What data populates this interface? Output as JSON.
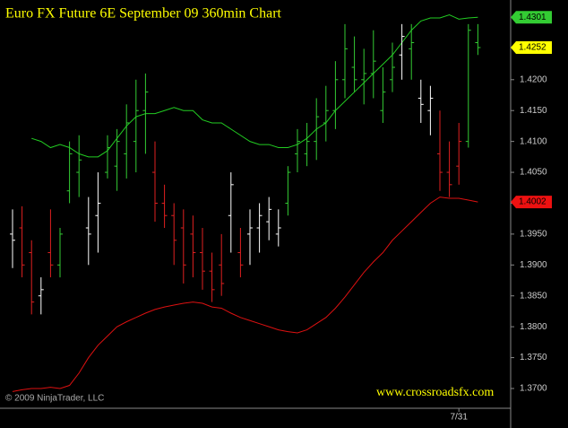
{
  "chart_data": {
    "type": "ohlc",
    "title": "Euro FX Future 6E September 09 360min Chart",
    "copyright": "© 2009 NinjaTrader, LLC",
    "website": "www.crossroadsfx.com",
    "categories": [
      null,
      null,
      null,
      null,
      null,
      null,
      null,
      null,
      null,
      null,
      null,
      null,
      null,
      null,
      null,
      null,
      null,
      null,
      null,
      null,
      null,
      null,
      null,
      null,
      null,
      null,
      null,
      null,
      null,
      null,
      null,
      null,
      null,
      null,
      null,
      null,
      null,
      null,
      null,
      null,
      null,
      null,
      null,
      null,
      null,
      null,
      null,
      "7/31",
      null,
      null
    ],
    "open": [
      1.395,
      1.396,
      1.392,
      1.385,
      1.392,
      1.39,
      1.402,
      1.405,
      1.396,
      1.398,
      1.405,
      1.406,
      1.408,
      1.41,
      1.415,
      1.405,
      1.4,
      1.398,
      1.396,
      1.395,
      1.392,
      1.389,
      1.39,
      1.398,
      1.392,
      1.395,
      1.396,
      1.397,
      1.395,
      1.4,
      1.408,
      1.408,
      1.41,
      1.413,
      1.415,
      1.42,
      1.422,
      1.42,
      1.421,
      1.415,
      1.42,
      1.424,
      1.425,
      1.417,
      1.415,
      1.408,
      1.405,
      1.406,
      1.41,
      1.426
    ],
    "high": [
      1.399,
      1.3995,
      1.394,
      1.388,
      1.399,
      1.396,
      1.41,
      1.411,
      1.401,
      1.405,
      1.411,
      1.412,
      1.416,
      1.42,
      1.421,
      1.41,
      1.403,
      1.4,
      1.399,
      1.398,
      1.396,
      1.392,
      1.395,
      1.405,
      1.396,
      1.399,
      1.4,
      1.401,
      1.399,
      1.406,
      1.412,
      1.413,
      1.417,
      1.419,
      1.423,
      1.429,
      1.427,
      1.425,
      1.428,
      1.422,
      1.426,
      1.429,
      1.429,
      1.42,
      1.419,
      1.415,
      1.41,
      1.413,
      1.429,
      1.429
    ],
    "low": [
      1.3895,
      1.388,
      1.382,
      1.382,
      1.388,
      1.388,
      1.4,
      1.401,
      1.39,
      1.392,
      1.404,
      1.402,
      1.404,
      1.405,
      1.408,
      1.397,
      1.396,
      1.39,
      1.387,
      1.388,
      1.386,
      1.384,
      1.385,
      1.392,
      1.388,
      1.39,
      1.392,
      1.394,
      1.393,
      1.398,
      1.405,
      1.406,
      1.407,
      1.41,
      1.412,
      1.417,
      1.418,
      1.416,
      1.417,
      1.413,
      1.418,
      1.42,
      1.42,
      1.413,
      1.411,
      1.402,
      1.401,
      1.403,
      1.409,
      1.424
    ],
    "close": [
      1.394,
      1.39,
      1.384,
      1.386,
      1.39,
      1.395,
      1.408,
      1.407,
      1.395,
      1.4,
      1.409,
      1.41,
      1.413,
      1.415,
      1.418,
      1.4,
      1.398,
      1.394,
      1.39,
      1.392,
      1.389,
      1.386,
      1.387,
      1.403,
      1.39,
      1.396,
      1.398,
      1.399,
      1.396,
      1.405,
      1.41,
      1.41,
      1.414,
      1.415,
      1.42,
      1.425,
      1.42,
      1.421,
      1.423,
      1.418,
      1.422,
      1.427,
      1.426,
      1.416,
      1.417,
      1.405,
      1.403,
      1.41,
      1.428,
      1.4252
    ],
    "bar_colors": [
      "#ffffff",
      "#e02020",
      "#e02020",
      "#ffffff",
      "#e02020",
      "#33cc33",
      "#33cc33",
      "#33cc33",
      "#ffffff",
      "#ffffff",
      "#33cc33",
      "#33cc33",
      "#33cc33",
      "#33cc33",
      "#33cc33",
      "#e02020",
      "#e02020",
      "#e02020",
      "#e02020",
      "#e02020",
      "#e02020",
      "#e02020",
      "#e02020",
      "#ffffff",
      "#e02020",
      "#ffffff",
      "#ffffff",
      "#ffffff",
      "#ffffff",
      "#33cc33",
      "#33cc33",
      "#33cc33",
      "#33cc33",
      "#33cc33",
      "#33cc33",
      "#33cc33",
      "#33cc33",
      "#33cc33",
      "#33cc33",
      "#33cc33",
      "#33cc33",
      "#ffffff",
      "#33cc33",
      "#ffffff",
      "#ffffff",
      "#e02020",
      "#e02020",
      "#e02020",
      "#33cc33",
      "#33cc33"
    ],
    "series": [
      {
        "color": "#22cc22",
        "values": [
          null,
          null,
          1.4105,
          1.41,
          1.409,
          1.4095,
          1.409,
          1.408,
          1.4075,
          1.4075,
          1.4085,
          1.4105,
          1.4125,
          1.414,
          1.4145,
          1.4145,
          1.415,
          1.4155,
          1.415,
          1.415,
          1.4135,
          1.413,
          1.413,
          1.412,
          1.411,
          1.41,
          1.4095,
          1.4095,
          1.409,
          1.409,
          1.4095,
          1.4105,
          1.412,
          1.413,
          1.415,
          1.4165,
          1.418,
          1.4195,
          1.421,
          1.4225,
          1.424,
          1.426,
          1.428,
          1.4295,
          1.43,
          1.43,
          1.4305,
          1.4298,
          1.43,
          1.4301
        ]
      },
      {
        "color": "#dd1111",
        "values": [
          1.3695,
          1.3698,
          1.37,
          1.37,
          1.3702,
          1.37,
          1.3705,
          1.3725,
          1.375,
          1.377,
          1.3785,
          1.38,
          1.3808,
          1.3815,
          1.3822,
          1.3828,
          1.3832,
          1.3835,
          1.3838,
          1.384,
          1.3838,
          1.3832,
          1.383,
          1.3822,
          1.3815,
          1.381,
          1.3805,
          1.38,
          1.3795,
          1.3792,
          1.379,
          1.3795,
          1.3805,
          1.3815,
          1.383,
          1.3848,
          1.3868,
          1.3888,
          1.3905,
          1.392,
          1.394,
          1.3955,
          1.397,
          1.3985,
          1.4,
          1.401,
          1.4008,
          1.4008,
          1.4005,
          1.4002
        ]
      }
    ],
    "ylim": [
      1.3668,
      1.4329
    ],
    "yticks": [
      {
        "value": 1.37,
        "label": "1.3700"
      },
      {
        "value": 1.375,
        "label": "1.3750"
      },
      {
        "value": 1.38,
        "label": "1.3800"
      },
      {
        "value": 1.385,
        "label": "1.3850"
      },
      {
        "value": 1.39,
        "label": "1.3900"
      },
      {
        "value": 1.395,
        "label": "1.3950"
      },
      {
        "value": 1.4,
        "label": "1.4000"
      },
      {
        "value": 1.405,
        "label": "1.4050"
      },
      {
        "value": 1.41,
        "label": "1.4100"
      },
      {
        "value": 1.415,
        "label": "1.4150"
      },
      {
        "value": 1.42,
        "label": "1.4200"
      }
    ],
    "axis_markers": [
      {
        "value": 1.4301,
        "color": "#33cc33"
      },
      {
        "value": 1.4252,
        "color": "#ffff00"
      },
      {
        "value": 1.4002,
        "color": "#ee1111"
      }
    ]
  }
}
